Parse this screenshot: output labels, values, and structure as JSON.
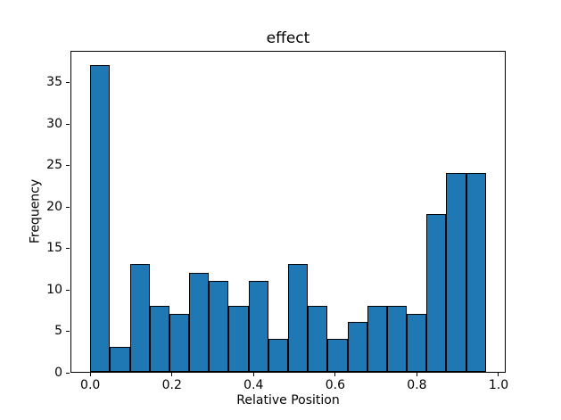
{
  "chart_data": {
    "type": "bar",
    "subtype": "histogram",
    "title": "effect",
    "xlabel": "Relative Position",
    "ylabel": "Frequency",
    "bin_edges": [
      0.0,
      0.0485,
      0.0969,
      0.1454,
      0.1938,
      0.2423,
      0.2907,
      0.3392,
      0.3876,
      0.4361,
      0.4845,
      0.533,
      0.5814,
      0.6299,
      0.6783,
      0.7268,
      0.7752,
      0.8237,
      0.8721,
      0.9206,
      0.969
    ],
    "values": [
      37,
      3,
      13,
      8,
      7,
      12,
      11,
      8,
      11,
      4,
      13,
      8,
      4,
      6,
      8,
      8,
      7,
      19,
      24,
      24
    ],
    "xlim": [
      -0.0485,
      1.0175
    ],
    "ylim": [
      0,
      38.85
    ],
    "xtick_values": [
      0.0,
      0.2,
      0.4,
      0.6,
      0.8,
      1.0
    ],
    "xtick_labels": [
      "0.0",
      "0.2",
      "0.4",
      "0.6",
      "0.8",
      "1.0"
    ],
    "ytick_values": [
      0,
      5,
      10,
      15,
      20,
      25,
      30,
      35
    ],
    "ytick_labels": [
      "0",
      "5",
      "10",
      "15",
      "20",
      "25",
      "30",
      "35"
    ],
    "bar_color": "#1f77b4",
    "bar_edge_color": "#000000",
    "grid": false,
    "legend": null
  }
}
